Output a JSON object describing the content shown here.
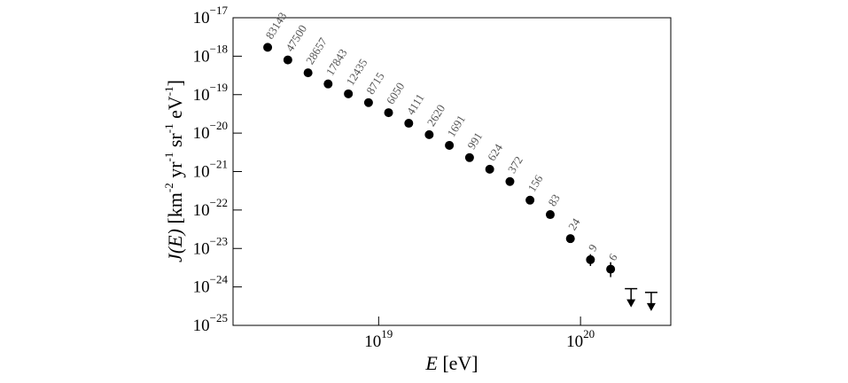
{
  "chart_data": {
    "type": "scatter",
    "xlabel": [
      {
        "text": "E",
        "style": "italic"
      },
      {
        "text": " [eV]"
      }
    ],
    "ylabel": [
      {
        "text": "J(E)",
        "style": "italic"
      },
      {
        "text": " [km"
      },
      {
        "text": "-2",
        "style": "sup"
      },
      {
        "text": " yr"
      },
      {
        "text": "-1",
        "style": "sup"
      },
      {
        "text": " sr"
      },
      {
        "text": "-1",
        "style": "sup"
      },
      {
        "text": " eV"
      },
      {
        "text": "-1",
        "style": "sup"
      },
      {
        "text": "]"
      }
    ],
    "xscale": "log",
    "yscale": "log",
    "xlim": [
      1.9e+18,
      2.8e+20
    ],
    "ylim": [
      1e-25,
      1e-17
    ],
    "xticks": [
      {
        "value": 1e+19,
        "label": "10",
        "exponent": "19"
      },
      {
        "value": 1e+20,
        "label": "10",
        "exponent": "20"
      }
    ],
    "yticks": [
      {
        "value": 1e-25,
        "label": "10",
        "exponent": "−25"
      },
      {
        "value": 1e-24,
        "label": "10",
        "exponent": "−24"
      },
      {
        "value": 1e-23,
        "label": "10",
        "exponent": "−23"
      },
      {
        "value": 1e-22,
        "label": "10",
        "exponent": "−22"
      },
      {
        "value": 1e-21,
        "label": "10",
        "exponent": "−21"
      },
      {
        "value": 1e-20,
        "label": "10",
        "exponent": "−20"
      },
      {
        "value": 1e-19,
        "label": "10",
        "exponent": "−19"
      },
      {
        "value": 1e-18,
        "label": "10",
        "exponent": "−18"
      },
      {
        "value": 1e-17,
        "label": "10",
        "exponent": "−17"
      }
    ],
    "color": "#000000",
    "x": [
      2.82e+18,
      3.55e+18,
      4.47e+18,
      5.62e+18,
      7.08e+18,
      8.91e+18,
      1.12e+19,
      1.41e+19,
      1.78e+19,
      2.24e+19,
      2.82e+19,
      3.55e+19,
      4.47e+19,
      5.62e+19,
      7.08e+19,
      8.91e+19,
      1.12e+20,
      1.41e+20
    ],
    "values": [
      1.7e-18,
      8e-19,
      3.7e-19,
      1.9e-19,
      1.05e-19,
      6.2e-20,
      3.4e-20,
      1.8e-20,
      9.1e-21,
      4.8e-21,
      2.3e-21,
      1.15e-21,
      5.5e-22,
      1.8e-22,
      7.6e-23,
      1.8e-23,
      5.1e-24,
      2.9e-24
    ],
    "err_low": [
      null,
      null,
      null,
      null,
      null,
      null,
      null,
      null,
      null,
      null,
      null,
      null,
      null,
      null,
      null,
      null,
      3.5e-24,
      1.8e-24
    ],
    "err_high": [
      null,
      null,
      null,
      null,
      null,
      null,
      null,
      null,
      null,
      null,
      null,
      null,
      null,
      null,
      null,
      null,
      7.1e-24,
      4.4e-24
    ],
    "event_counts": [
      83143,
      47500,
      28657,
      17843,
      12435,
      8715,
      6050,
      4111,
      2620,
      1691,
      991,
      624,
      372,
      156,
      83,
      24,
      9,
      6
    ],
    "upper_limits": {
      "x": [
        1.78e+20,
        2.24e+20
      ],
      "values": [
        9e-25,
        7.2e-25
      ]
    }
  }
}
